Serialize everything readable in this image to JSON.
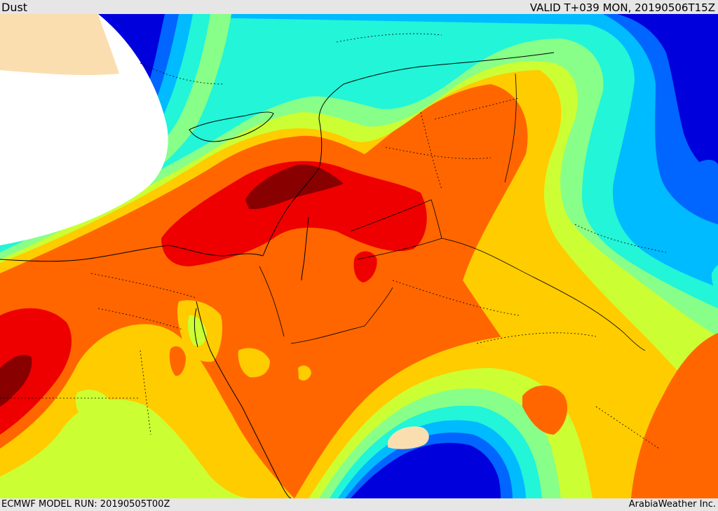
{
  "header": {
    "product": "Dust",
    "valid": "VALID T+039 MON, 20190506T15Z"
  },
  "footer": {
    "model_run": "ECMWF MODEL RUN: 20190505T00Z",
    "credit": "ArabiaWeather Inc."
  },
  "colors": {
    "sea_clear": "#ffffff",
    "land_clear": "#fbdeb0",
    "levels": [
      "#0000dd",
      "#0066ff",
      "#00bbff",
      "#22f5d8",
      "#88ff88",
      "#ccff33",
      "#ffcc00",
      "#ff6600",
      "#ee0000",
      "#880000"
    ]
  }
}
